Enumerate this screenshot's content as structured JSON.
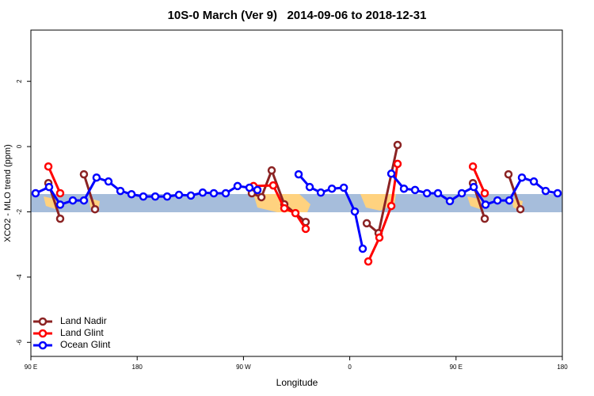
{
  "chart_data": {
    "type": "line",
    "title": "10S-0 March (Ver 9)   2014-09-06 to 2018-12-31",
    "x_label": "Longitude",
    "y_label": "XCO2 - MLO trend (ppm)",
    "xlim": [
      90,
      540
    ],
    "ylim": [
      -6.43,
      3.57
    ],
    "xticks": [
      {
        "value": 90,
        "label": "90 E"
      },
      180,
      {
        "value": 270,
        "label": "90 W"
      },
      {
        "value": 360,
        "label": "0"
      },
      {
        "value": 450,
        "label": "90 E"
      },
      {
        "value": 540,
        "label": "180"
      }
    ],
    "yticks": [
      2,
      0,
      -2,
      -4,
      -6
    ],
    "legend": "bottom-left",
    "series": [
      {
        "name": "Land Nadir",
        "color": "#8b2323",
        "x": [
          104.8,
          114.8,
          null,
          134.9,
          144.3,
          null,
          277.1,
          285.2,
          293.9,
          304.6,
          322.7,
          null,
          374.4,
          384.4,
          400.5,
          null,
          464.3,
          474.3,
          null,
          494.4,
          504.5
        ],
        "values": [
          -1.12,
          -2.21,
          null,
          -0.85,
          -1.92,
          null,
          -1.43,
          -1.55,
          -0.73,
          -1.77,
          -2.31,
          null,
          -2.35,
          -2.65,
          0.05,
          null,
          -1.12,
          -2.21,
          null,
          -0.85,
          -1.92
        ]
      },
      {
        "name": "Land Glint",
        "color": "#ff0000",
        "x": [
          104.8,
          114.8,
          null,
          278.5,
          295.2,
          304.6,
          314.0,
          322.7,
          null,
          375.7,
          385.1,
          395.2,
          400.5,
          null,
          464.3,
          474.3
        ],
        "values": [
          -0.61,
          -1.43,
          null,
          -1.21,
          -1.19,
          -1.89,
          -2.04,
          -2.52,
          null,
          -3.52,
          -2.79,
          -1.82,
          -0.53,
          null,
          -0.61,
          -1.43
        ]
      },
      {
        "name": "Ocean Glint",
        "color": "#0000ff",
        "x": [
          94,
          105.4,
          114.8,
          125.5,
          134.9,
          145.6,
          155.7,
          165.8,
          175.2,
          185.2,
          195.3,
          205.4,
          215.4,
          225.5,
          235.5,
          244.9,
          255.0,
          265.0,
          275.1,
          281.8,
          null,
          316.7,
          326.1,
          335.5,
          344.9,
          355.0,
          364.3,
          371.0,
          null,
          395.2,
          405.9,
          415.3,
          425.4,
          434.7,
          444.8,
          454.9,
          465.0,
          475.0,
          485.1,
          495.1,
          505.8,
          515.9,
          525.9,
          536.0
        ],
        "values": [
          -1.43,
          -1.24,
          -1.78,
          -1.65,
          -1.65,
          -0.95,
          -1.07,
          -1.36,
          -1.46,
          -1.53,
          -1.53,
          -1.53,
          -1.48,
          -1.5,
          -1.41,
          -1.43,
          -1.43,
          -1.21,
          -1.26,
          -1.33,
          null,
          -0.85,
          -1.24,
          -1.41,
          -1.29,
          -1.26,
          -1.99,
          -3.13,
          null,
          -0.83,
          -1.29,
          -1.33,
          -1.43,
          -1.43,
          -1.67,
          -1.43,
          -1.24,
          -1.78,
          -1.65,
          -1.65,
          -0.95,
          -1.07,
          -1.36,
          -1.43
        ]
      }
    ]
  }
}
